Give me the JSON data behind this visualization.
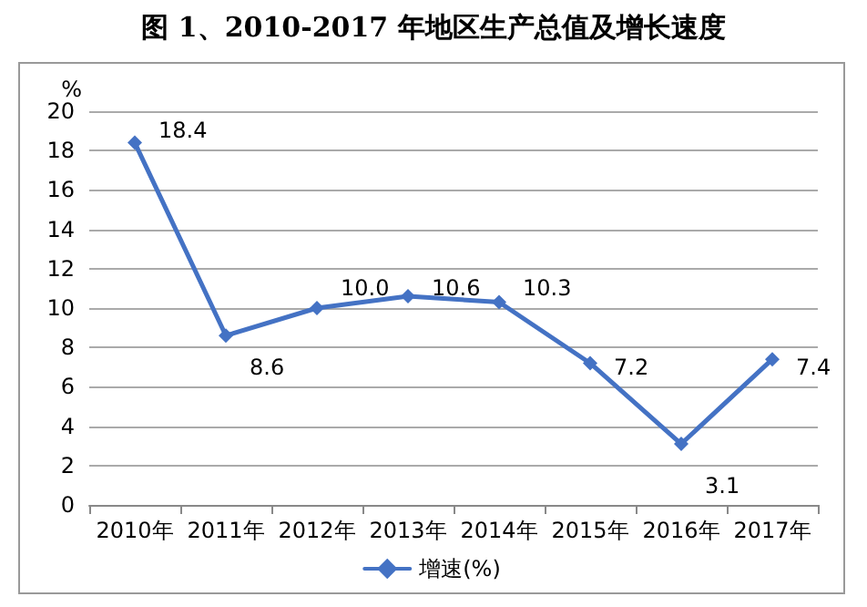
{
  "chart_data": {
    "type": "line",
    "title": "图 1、2010-2017 年地区生产总值及增长速度",
    "ylabel": "%",
    "categories": [
      "2010年",
      "2011年",
      "2012年",
      "2013年",
      "2014年",
      "2015年",
      "2016年",
      "2017年"
    ],
    "series": [
      {
        "name": "增速(%)",
        "color": "#4472c4",
        "values": [
          18.4,
          8.6,
          10.0,
          10.6,
          10.3,
          7.2,
          3.1,
          7.4
        ],
        "value_labels": [
          "18.4",
          "8.6",
          "10.0",
          "10.6",
          "10.3",
          "7.2",
          "3.1",
          "7.4"
        ]
      }
    ],
    "ylim": [
      0,
      20
    ],
    "yticks": [
      0,
      2,
      4,
      6,
      8,
      10,
      12,
      14,
      16,
      18,
      20
    ],
    "grid": "y",
    "legend": "bottom",
    "marker": "diamond",
    "line_style": "solid"
  }
}
